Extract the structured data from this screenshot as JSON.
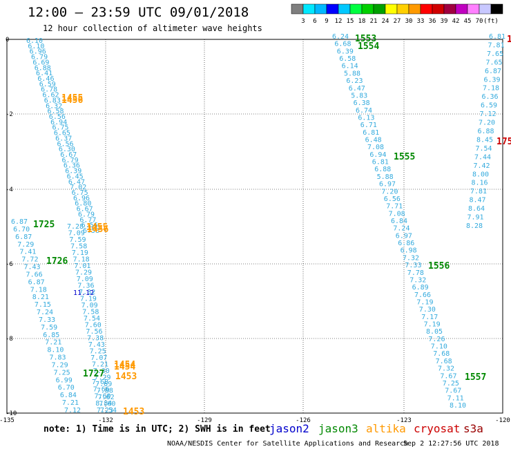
{
  "title": "12:00 – 23:59 UTC 09/01/2018",
  "subtitle": "12 hour collection of altimeter wave heights",
  "colorbar": {
    "colors": [
      "#7f7f7f",
      "#00e8ff",
      "#00b8ff",
      "#0000ff",
      "#00c8ff",
      "#00ff40",
      "#00d000",
      "#00a000",
      "#ffff00",
      "#ffd000",
      "#ff9a00",
      "#ff0000",
      "#d00000",
      "#a00040",
      "#c000c0",
      "#ff80ff",
      "#c8c8ff",
      "#000000"
    ],
    "labels": [
      "3",
      "6",
      "9",
      "12",
      "15",
      "18",
      "21",
      "24",
      "27",
      "30",
      "33",
      "36",
      "39",
      "42",
      "45",
      "70",
      "(ft)"
    ]
  },
  "axes": {
    "x_ticks": [
      "-135",
      "-132",
      "-129",
      "-126",
      "-123",
      "-120"
    ],
    "y_ticks": [
      "0",
      "-2",
      "-4",
      "-6",
      "-8",
      "-10"
    ]
  },
  "note": "note: 1) Time is in UTC; 2) SWH is in feet",
  "legend": [
    {
      "name": "jason2",
      "color": "#0000cc"
    },
    {
      "name": "jason3",
      "color": "#008800"
    },
    {
      "name": "altika",
      "color": "#ff9900"
    },
    {
      "name": "cryosat",
      "color": "#cc0000"
    },
    {
      "name": "s3a",
      "color": "#990000"
    }
  ],
  "footer": {
    "credit": "NOAA/NESDIS Center for Satellite Applications and Research",
    "timestamp": "Sep  2 12:27:56 UTC 2018"
  },
  "track_colors": {
    "wave": "#33aadd",
    "jason3": "#008800",
    "altika": "#ff9900",
    "jason2": "#0000cc",
    "cryosat": "#cc0000"
  },
  "tracks": [
    {
      "id": "t1",
      "values": [
        "6.10",
        "6.10",
        "6.96",
        "6.79",
        "6.69",
        "6.88",
        "6.41",
        "6.46",
        "6.59",
        "6.78",
        "6.62",
        "6.83",
        "6.32",
        "6.58",
        "6.56",
        "6.94",
        "6.75",
        "6.65",
        "6.37",
        "6.56",
        "6.30",
        "6.67",
        "6.79",
        "6.36",
        "6.39",
        "6.45",
        "6.47",
        "7.02",
        "6.75",
        "6.96",
        "6.80",
        "6.67",
        "6.79",
        "6.77",
        "6.56",
        "6.58"
      ]
    },
    {
      "id": "t2",
      "values": [
        "7.28",
        "7.09",
        "7.59",
        "7.58",
        "7.19",
        "7.18",
        "7.01",
        "7.29",
        "7.09",
        "7.36",
        "7.32",
        "7.19",
        "7.09",
        "7.58",
        "7.54",
        "7.60",
        "7.56",
        "7.38",
        "7.43",
        "7.25",
        "7.07",
        "7.21",
        "7.30",
        "7.29",
        "7.69",
        "7.88",
        "7.62",
        "7.60",
        "7.54"
      ]
    },
    {
      "id": "t3",
      "values": [
        "6.87",
        "6.70",
        "6.87",
        "7.29",
        "7.41",
        "7.72",
        "7.43",
        "7.66",
        "6.87",
        "7.18",
        "8.21",
        "7.15",
        "7.24",
        "7.33",
        "7.59",
        "6.85",
        "7.21",
        "8.10",
        "7.83",
        "7.29",
        "7.25",
        "6.99",
        "6.70",
        "6.84",
        "7.21",
        "7.12"
      ]
    },
    {
      "id": "t4",
      "values": [
        "7.60",
        "7.66",
        "7.60",
        "8.84",
        "7.23"
      ]
    },
    {
      "id": "t5",
      "values": [
        "6.24",
        "6.68",
        "6.39",
        "6.58",
        "6.14",
        "5.88",
        "6.23",
        "6.47",
        "5.83",
        "6.38",
        "6.74",
        "6.13",
        "6.71",
        "6.81",
        "6.48",
        "7.08",
        "6.94",
        "6.81",
        "6.88",
        "5.88",
        "6.97",
        "7.20",
        "6.56",
        "7.71",
        "7.08",
        "6.84",
        "7.24",
        "6.97",
        "6.86",
        "6.98",
        "7.32",
        "7.33",
        "7.78",
        "7.32",
        "6.89",
        "7.66",
        "7.19",
        "7.30",
        "7.17",
        "7.19",
        "8.05",
        "7.26",
        "7.10",
        "7.68",
        "7.68",
        "7.32",
        "7.67",
        "7.25",
        "7.67",
        "7.11",
        "8.10"
      ]
    },
    {
      "id": "t6",
      "values": [
        "6.81",
        "7.81",
        "7.65",
        "7.65",
        "6.87",
        "6.39",
        "7.18",
        "6.36",
        "6.59",
        "7.12",
        "7.20",
        "6.88",
        "8.45",
        "7.54",
        "7.44",
        "7.42",
        "8.00",
        "8.16",
        "7.81",
        "8.47",
        "8.64",
        "7.91",
        "8.28"
      ]
    }
  ],
  "passes": [
    {
      "label": "1553",
      "sat": "jason3"
    },
    {
      "label": "1554",
      "sat": "jason3"
    },
    {
      "label": "1555",
      "sat": "jason3"
    },
    {
      "label": "1556",
      "sat": "jason3"
    },
    {
      "label": "1557",
      "sat": "jason3"
    },
    {
      "label": "1725",
      "sat": "jason3"
    },
    {
      "label": "1726",
      "sat": "jason3"
    },
    {
      "label": "1727",
      "sat": "jason3"
    },
    {
      "label": "1455",
      "sat": "altika"
    },
    {
      "label": "1456",
      "sat": "altika"
    },
    {
      "label": "1455",
      "sat": "altika"
    },
    {
      "label": "1456",
      "sat": "altika"
    },
    {
      "label": "1454",
      "sat": "altika"
    },
    {
      "label": "1454",
      "sat": "altika"
    },
    {
      "label": "1453",
      "sat": "altika"
    },
    {
      "label": "1453",
      "sat": "altika"
    },
    {
      "label": "175",
      "sat": "cryosat"
    },
    {
      "label": "1",
      "sat": "cryosat"
    },
    {
      "label": "11.12",
      "sat": "jason2"
    }
  ]
}
